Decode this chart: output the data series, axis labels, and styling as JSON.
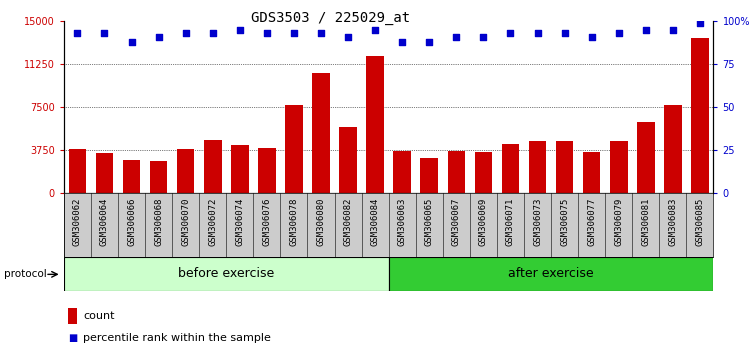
{
  "title": "GDS3503 / 225029_at",
  "categories": [
    "GSM306062",
    "GSM306064",
    "GSM306066",
    "GSM306068",
    "GSM306070",
    "GSM306072",
    "GSM306074",
    "GSM306076",
    "GSM306078",
    "GSM306080",
    "GSM306082",
    "GSM306084",
    "GSM306063",
    "GSM306065",
    "GSM306067",
    "GSM306069",
    "GSM306071",
    "GSM306073",
    "GSM306075",
    "GSM306077",
    "GSM306079",
    "GSM306081",
    "GSM306083",
    "GSM306085"
  ],
  "bar_values": [
    3800,
    3500,
    2850,
    2750,
    3800,
    4600,
    4200,
    3900,
    7700,
    10500,
    5800,
    12000,
    3700,
    3050,
    3700,
    3550,
    4250,
    4500,
    4550,
    3550,
    4550,
    6200,
    7700,
    13500
  ],
  "percentile_values": [
    93,
    93,
    88,
    91,
    93,
    93,
    95,
    93,
    93,
    93,
    91,
    95,
    88,
    88,
    91,
    91,
    93,
    93,
    93,
    91,
    93,
    95,
    95,
    99
  ],
  "bar_color": "#cc0000",
  "percentile_color": "#0000cc",
  "ylim_left": [
    0,
    15000
  ],
  "ylim_right": [
    0,
    100
  ],
  "yticks_left": [
    0,
    3750,
    7500,
    11250,
    15000
  ],
  "ytick_labels_left": [
    "0",
    "3750",
    "7500",
    "11250",
    "15000"
  ],
  "yticks_right": [
    0,
    25,
    50,
    75,
    100
  ],
  "ytick_labels_right": [
    "0",
    "25",
    "50",
    "75",
    "100%"
  ],
  "grid_color": "#000000",
  "before_label": "before exercise",
  "after_label": "after exercise",
  "before_color": "#ccffcc",
  "after_color": "#33cc33",
  "protocol_label": "protocol",
  "n_before": 12,
  "n_after": 12,
  "bar_width": 0.65,
  "background_color": "#ffffff",
  "xlabel_bg_color": "#cccccc",
  "legend_count_label": "count",
  "legend_percentile_label": "percentile rank within the sample",
  "title_fontsize": 10,
  "tick_fontsize": 7,
  "label_fontsize": 8.5
}
